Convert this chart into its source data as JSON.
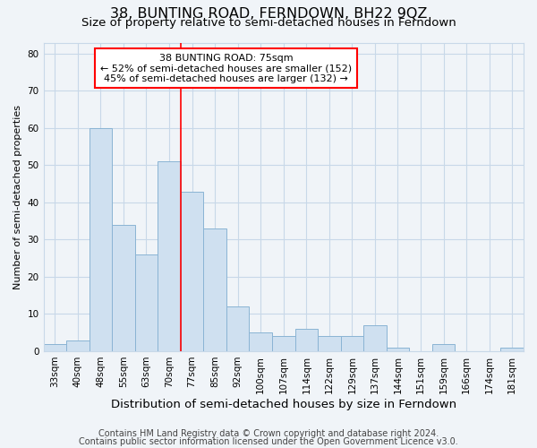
{
  "title": "38, BUNTING ROAD, FERNDOWN, BH22 9QZ",
  "subtitle": "Size of property relative to semi-detached houses in Ferndown",
  "xlabel": "Distribution of semi-detached houses by size in Ferndown",
  "ylabel": "Number of semi-detached properties",
  "footer1": "Contains HM Land Registry data © Crown copyright and database right 2024.",
  "footer2": "Contains public sector information licensed under the Open Government Licence v3.0.",
  "categories": [
    "33sqm",
    "40sqm",
    "48sqm",
    "55sqm",
    "63sqm",
    "70sqm",
    "77sqm",
    "85sqm",
    "92sqm",
    "100sqm",
    "107sqm",
    "114sqm",
    "122sqm",
    "129sqm",
    "137sqm",
    "144sqm",
    "151sqm",
    "159sqm",
    "166sqm",
    "174sqm",
    "181sqm"
  ],
  "values": [
    2,
    3,
    60,
    34,
    26,
    51,
    43,
    33,
    12,
    5,
    4,
    6,
    4,
    4,
    7,
    1,
    0,
    2,
    0,
    0,
    1
  ],
  "bar_color": "#cfe0f0",
  "bar_edge_color": "#8ab4d4",
  "annotation_text1": "38 BUNTING ROAD: 75sqm",
  "annotation_text2": "← 52% of semi-detached houses are smaller (152)",
  "annotation_text3": "45% of semi-detached houses are larger (132) →",
  "annotation_box_color": "white",
  "annotation_box_edge_color": "red",
  "vline_color": "red",
  "vline_x": 5.5,
  "ylim": [
    0,
    83
  ],
  "yticks": [
    0,
    10,
    20,
    30,
    40,
    50,
    60,
    70,
    80
  ],
  "grid_color": "#c8d8e8",
  "background_color": "#f0f4f8",
  "title_fontsize": 11.5,
  "subtitle_fontsize": 9.5,
  "xlabel_fontsize": 9.5,
  "ylabel_fontsize": 8,
  "tick_fontsize": 7.5,
  "footer_fontsize": 7,
  "annot_fontsize": 8
}
